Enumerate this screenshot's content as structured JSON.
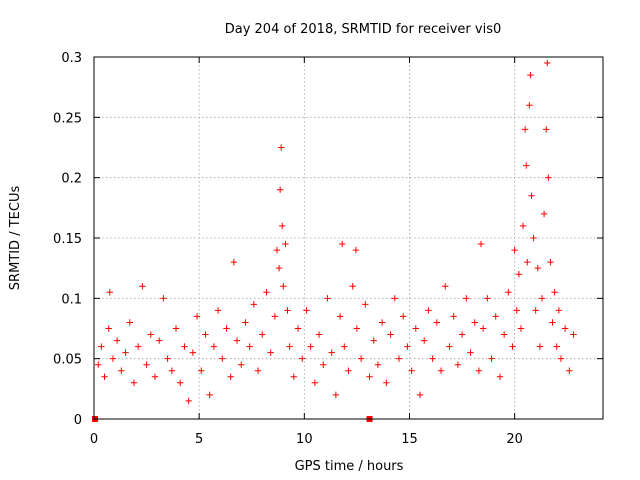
{
  "chart_data": {
    "type": "scatter",
    "title": "Day 204 of 2018, SRMTID for receiver vis0",
    "xlabel": "GPS time / hours",
    "ylabel": "SRMTID / TECUs",
    "xlim": [
      0,
      24.2
    ],
    "ylim": [
      0,
      0.3
    ],
    "xticks": [
      0,
      5,
      10,
      15,
      20
    ],
    "xtick_labels": [
      "0",
      "5",
      "10",
      "15",
      "20"
    ],
    "yticks": [
      0,
      0.05,
      0.1,
      0.15,
      0.2,
      0.25,
      0.3
    ],
    "ytick_labels": [
      "0",
      "0.05",
      "0.1",
      "0.15",
      "0.2",
      "0.25",
      "0.3"
    ],
    "grid": true,
    "marker": "+",
    "color": "#ff0000",
    "series": [
      {
        "name": "vis0",
        "points": [
          [
            0.05,
            0.0
          ],
          [
            13.1,
            0.0
          ],
          [
            0.2,
            0.045
          ],
          [
            0.35,
            0.06
          ],
          [
            0.5,
            0.035
          ],
          [
            0.7,
            0.075
          ],
          [
            0.75,
            0.105
          ],
          [
            0.9,
            0.05
          ],
          [
            1.1,
            0.065
          ],
          [
            1.3,
            0.04
          ],
          [
            1.5,
            0.055
          ],
          [
            1.7,
            0.08
          ],
          [
            1.9,
            0.03
          ],
          [
            2.1,
            0.06
          ],
          [
            2.3,
            0.11
          ],
          [
            2.5,
            0.045
          ],
          [
            2.7,
            0.07
          ],
          [
            2.9,
            0.035
          ],
          [
            3.1,
            0.065
          ],
          [
            3.3,
            0.1
          ],
          [
            3.5,
            0.05
          ],
          [
            3.7,
            0.04
          ],
          [
            3.9,
            0.075
          ],
          [
            4.1,
            0.03
          ],
          [
            4.3,
            0.06
          ],
          [
            4.5,
            0.015
          ],
          [
            4.7,
            0.055
          ],
          [
            4.9,
            0.085
          ],
          [
            5.1,
            0.04
          ],
          [
            5.3,
            0.07
          ],
          [
            5.5,
            0.02
          ],
          [
            5.7,
            0.06
          ],
          [
            5.9,
            0.09
          ],
          [
            6.1,
            0.05
          ],
          [
            6.3,
            0.075
          ],
          [
            6.5,
            0.035
          ],
          [
            6.65,
            0.13
          ],
          [
            6.8,
            0.065
          ],
          [
            7.0,
            0.045
          ],
          [
            7.2,
            0.08
          ],
          [
            7.4,
            0.06
          ],
          [
            7.6,
            0.095
          ],
          [
            7.8,
            0.04
          ],
          [
            8.0,
            0.07
          ],
          [
            8.2,
            0.105
          ],
          [
            8.4,
            0.055
          ],
          [
            8.6,
            0.085
          ],
          [
            8.7,
            0.14
          ],
          [
            8.8,
            0.125
          ],
          [
            8.85,
            0.19
          ],
          [
            8.9,
            0.225
          ],
          [
            8.95,
            0.16
          ],
          [
            9.0,
            0.11
          ],
          [
            9.1,
            0.145
          ],
          [
            9.2,
            0.09
          ],
          [
            9.3,
            0.06
          ],
          [
            9.5,
            0.035
          ],
          [
            9.7,
            0.075
          ],
          [
            9.9,
            0.05
          ],
          [
            10.1,
            0.09
          ],
          [
            10.3,
            0.06
          ],
          [
            10.5,
            0.03
          ],
          [
            10.7,
            0.07
          ],
          [
            10.9,
            0.045
          ],
          [
            11.1,
            0.1
          ],
          [
            11.3,
            0.055
          ],
          [
            11.5,
            0.02
          ],
          [
            11.7,
            0.085
          ],
          [
            11.8,
            0.145
          ],
          [
            11.9,
            0.06
          ],
          [
            12.1,
            0.04
          ],
          [
            12.3,
            0.11
          ],
          [
            12.45,
            0.14
          ],
          [
            12.5,
            0.075
          ],
          [
            12.7,
            0.05
          ],
          [
            12.9,
            0.095
          ],
          [
            13.1,
            0.035
          ],
          [
            13.3,
            0.065
          ],
          [
            13.5,
            0.045
          ],
          [
            13.7,
            0.08
          ],
          [
            13.9,
            0.03
          ],
          [
            14.1,
            0.07
          ],
          [
            14.3,
            0.1
          ],
          [
            14.5,
            0.05
          ],
          [
            14.7,
            0.085
          ],
          [
            14.9,
            0.06
          ],
          [
            15.1,
            0.04
          ],
          [
            15.3,
            0.075
          ],
          [
            15.5,
            0.02
          ],
          [
            15.7,
            0.065
          ],
          [
            15.9,
            0.09
          ],
          [
            16.1,
            0.05
          ],
          [
            16.3,
            0.08
          ],
          [
            16.5,
            0.04
          ],
          [
            16.7,
            0.11
          ],
          [
            16.9,
            0.06
          ],
          [
            17.1,
            0.085
          ],
          [
            17.3,
            0.045
          ],
          [
            17.5,
            0.07
          ],
          [
            17.7,
            0.1
          ],
          [
            17.9,
            0.055
          ],
          [
            18.1,
            0.08
          ],
          [
            18.3,
            0.04
          ],
          [
            18.4,
            0.145
          ],
          [
            18.5,
            0.075
          ],
          [
            18.7,
            0.1
          ],
          [
            18.9,
            0.05
          ],
          [
            19.1,
            0.085
          ],
          [
            19.3,
            0.035
          ],
          [
            19.5,
            0.07
          ],
          [
            19.7,
            0.105
          ],
          [
            19.9,
            0.06
          ],
          [
            20.0,
            0.14
          ],
          [
            20.1,
            0.09
          ],
          [
            20.2,
            0.12
          ],
          [
            20.3,
            0.075
          ],
          [
            20.4,
            0.16
          ],
          [
            20.5,
            0.24
          ],
          [
            20.55,
            0.21
          ],
          [
            20.6,
            0.13
          ],
          [
            20.7,
            0.26
          ],
          [
            20.75,
            0.285
          ],
          [
            20.8,
            0.185
          ],
          [
            20.9,
            0.15
          ],
          [
            21.0,
            0.09
          ],
          [
            21.1,
            0.125
          ],
          [
            21.2,
            0.06
          ],
          [
            21.3,
            0.1
          ],
          [
            21.4,
            0.17
          ],
          [
            21.5,
            0.24
          ],
          [
            21.55,
            0.295
          ],
          [
            21.6,
            0.2
          ],
          [
            21.7,
            0.13
          ],
          [
            21.8,
            0.08
          ],
          [
            21.9,
            0.105
          ],
          [
            22.0,
            0.06
          ],
          [
            22.1,
            0.09
          ],
          [
            22.2,
            0.05
          ],
          [
            22.4,
            0.075
          ],
          [
            22.6,
            0.04
          ],
          [
            22.8,
            0.07
          ]
        ]
      }
    ]
  }
}
